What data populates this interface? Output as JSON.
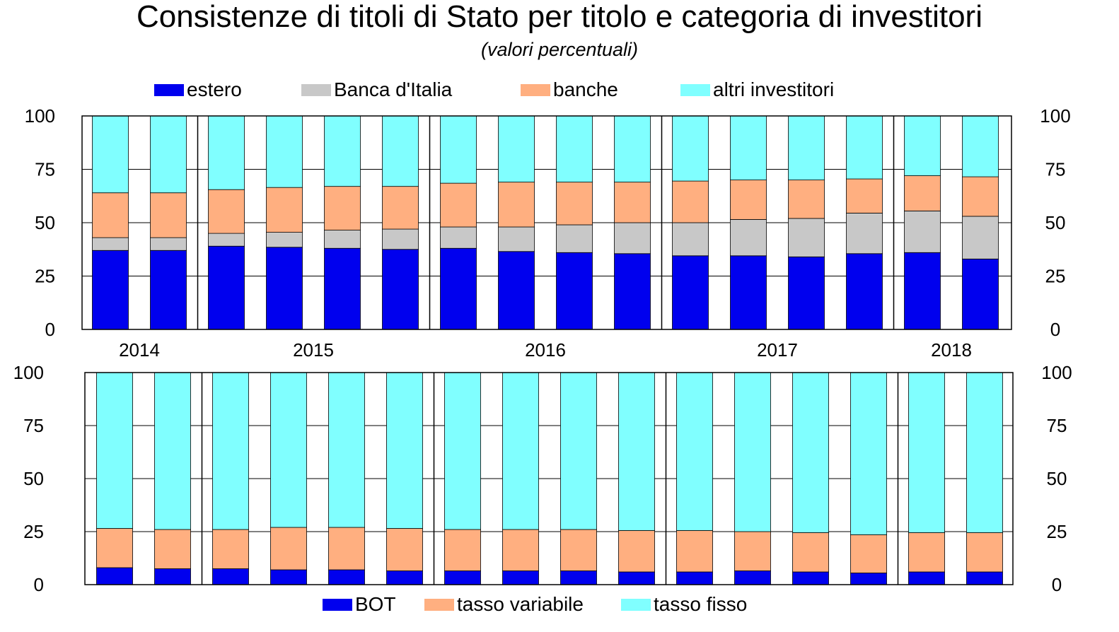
{
  "title": "Consistenze di titoli di Stato per titolo e categoria di investitori",
  "subtitle": "(valori percentuali)",
  "legend_top": [
    {
      "label": "estero",
      "color": "#0000ee"
    },
    {
      "label": "Banca d'Italia",
      "color": "#c8c8c8"
    },
    {
      "label": "banche",
      "color": "#ffaf80"
    },
    {
      "label": "altri investitori",
      "color": "#80ffff"
    }
  ],
  "legend_bottom": [
    {
      "label": "BOT",
      "color": "#0000ee"
    },
    {
      "label": "tasso variabile",
      "color": "#ffaf80"
    },
    {
      "label": "tasso fisso",
      "color": "#80ffff"
    }
  ],
  "chart_data": [
    {
      "type": "bar",
      "stacked": true,
      "categories": [
        "2014 a",
        "2014 b",
        "2015 a",
        "2015 b",
        "2015 c",
        "2015 d",
        "2016 a",
        "2016 b",
        "2016 c",
        "2016 d",
        "2017 a",
        "2017 b",
        "2017 c",
        "2017 d",
        "2018 a",
        "2018 b"
      ],
      "category_years": [
        "2014",
        "2014",
        "2015",
        "2015",
        "2015",
        "2015",
        "2016",
        "2016",
        "2016",
        "2016",
        "2017",
        "2017",
        "2017",
        "2017",
        "2018",
        "2018"
      ],
      "year_labels": [
        "2014",
        "2015",
        "2016",
        "2017",
        "2018"
      ],
      "series": [
        {
          "name": "estero",
          "color": "#0000ee",
          "values": [
            37,
            37,
            39,
            38.5,
            38,
            37.5,
            38,
            36.5,
            36,
            35.5,
            34.5,
            34.5,
            34,
            35.5,
            36,
            33
          ]
        },
        {
          "name": "Banca d'Italia",
          "color": "#c8c8c8",
          "values": [
            6,
            6,
            6,
            7,
            8.5,
            9.5,
            10,
            11.5,
            13,
            14.5,
            15.5,
            17,
            18,
            19,
            19.5,
            20
          ]
        },
        {
          "name": "banche",
          "color": "#ffaf80",
          "values": [
            21,
            21,
            20.5,
            21,
            20.5,
            20,
            20.5,
            21,
            20,
            19,
            19.5,
            18.5,
            18,
            16,
            16.5,
            18.5
          ]
        },
        {
          "name": "altri investitori",
          "color": "#80ffff",
          "values": [
            36,
            36,
            34.5,
            33.5,
            33,
            33,
            31.5,
            31,
            31,
            31,
            30.5,
            30,
            30,
            29.5,
            28,
            28.5
          ]
        }
      ],
      "ylim": [
        0,
        100
      ],
      "yticks": [
        "0",
        "25",
        "50",
        "75",
        "100"
      ],
      "grid": true,
      "legend_position": "top"
    },
    {
      "type": "bar",
      "stacked": true,
      "categories": [
        "2014 a",
        "2014 b",
        "2015 a",
        "2015 b",
        "2015 c",
        "2015 d",
        "2016 a",
        "2016 b",
        "2016 c",
        "2016 d",
        "2017 a",
        "2017 b",
        "2017 c",
        "2017 d",
        "2018 a",
        "2018 b"
      ],
      "category_years": [
        "2014",
        "2014",
        "2015",
        "2015",
        "2015",
        "2015",
        "2016",
        "2016",
        "2016",
        "2016",
        "2017",
        "2017",
        "2017",
        "2017",
        "2018",
        "2018"
      ],
      "series": [
        {
          "name": "BOT",
          "color": "#0000ee",
          "values": [
            8,
            7.5,
            7.5,
            7,
            7,
            6.5,
            6.5,
            6.5,
            6.5,
            6,
            6,
            6.5,
            6,
            5.5,
            6,
            6
          ]
        },
        {
          "name": "tasso variabile",
          "color": "#ffaf80",
          "values": [
            18.5,
            18.5,
            18.5,
            20,
            20,
            20,
            19.5,
            19.5,
            19.5,
            19.5,
            19.5,
            18.5,
            18.5,
            18,
            18.5,
            18.5
          ]
        },
        {
          "name": "tasso fisso",
          "color": "#80ffff",
          "values": [
            73.5,
            74,
            74,
            73,
            73,
            73.5,
            74,
            74,
            74,
            74.5,
            74.5,
            75,
            75.5,
            76.5,
            75.5,
            75.5
          ]
        }
      ],
      "ylim": [
        0,
        100
      ],
      "yticks": [
        "0",
        "25",
        "50",
        "75",
        "100"
      ],
      "grid": true,
      "legend_position": "bottom"
    }
  ]
}
